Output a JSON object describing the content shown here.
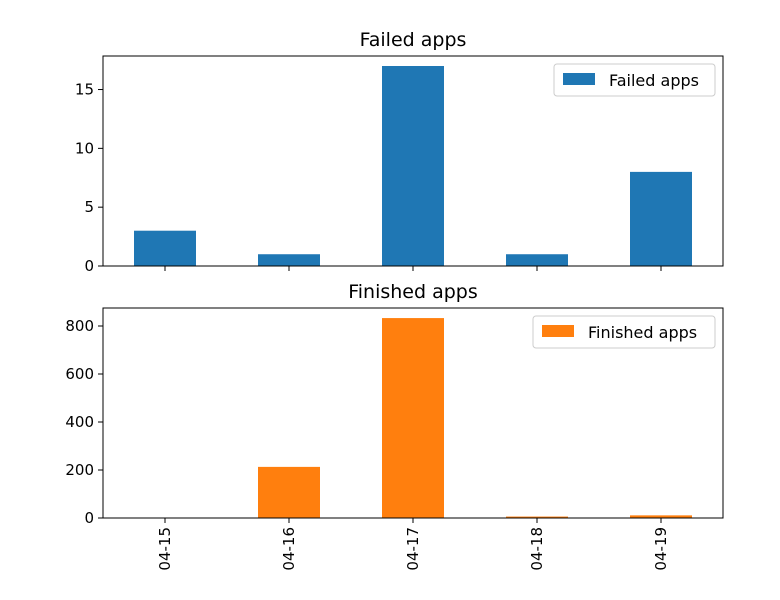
{
  "chart_data": [
    {
      "type": "bar",
      "title": "Failed apps",
      "categories": [
        "04-15",
        "04-16",
        "04-17",
        "04-18",
        "04-19"
      ],
      "series": [
        {
          "name": "Failed apps",
          "values": [
            3,
            1,
            17,
            1,
            8
          ],
          "color": "#1f77b4"
        }
      ],
      "ylim": [
        0,
        17.85
      ],
      "yticks": [
        0,
        5,
        10,
        15
      ],
      "xlabel": "",
      "ylabel": "",
      "show_xtick_labels": false,
      "grid": false,
      "legend_position": "top-right"
    },
    {
      "type": "bar",
      "title": "Finished apps",
      "categories": [
        "04-15",
        "04-16",
        "04-17",
        "04-18",
        "04-19"
      ],
      "series": [
        {
          "name": "Finished apps",
          "values": [
            0,
            213,
            833,
            6,
            11
          ],
          "color": "#ff7f0e"
        }
      ],
      "ylim": [
        0,
        875
      ],
      "yticks": [
        0,
        200,
        400,
        600,
        800
      ],
      "xlabel": "",
      "ylabel": "",
      "show_xtick_labels": true,
      "grid": false,
      "legend_position": "top-right"
    }
  ]
}
